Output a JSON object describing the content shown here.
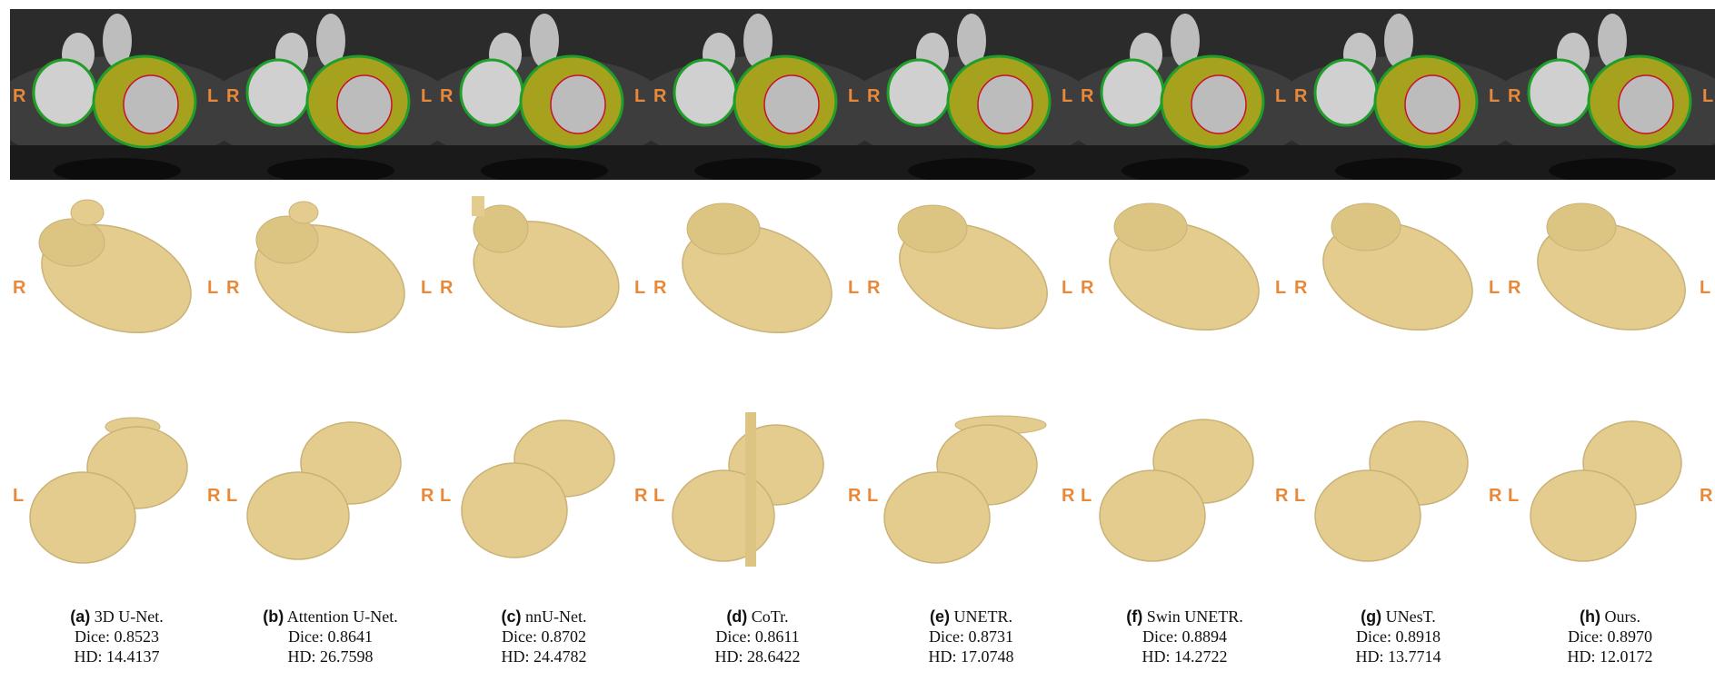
{
  "figure": {
    "row_labels": {
      "ct": {
        "left": "R",
        "right": "L"
      },
      "render_top": {
        "left": "R",
        "right": "L"
      },
      "render_bottom": {
        "left": "L",
        "right": "R"
      }
    },
    "colors": {
      "myocardium_overlay": "#a7a21e",
      "ground_truth_contour": "#1f9e2a",
      "error_contour": "#c8102e",
      "arrow": "#e01b1b",
      "mesh": "#e3cc8e",
      "orientation_label": "#e8893a"
    },
    "panels": [
      {
        "letter": "(a)",
        "name": "3D U-Net.",
        "dice": "Dice: 0.8523",
        "hd": "HD: 14.4137"
      },
      {
        "letter": "(b)",
        "name": "Attention U-Net.",
        "dice": "Dice: 0.8641",
        "hd": "HD: 26.7598"
      },
      {
        "letter": "(c)",
        "name": "nnU-Net.",
        "dice": "Dice: 0.8702",
        "hd": "HD: 24.4782"
      },
      {
        "letter": "(d)",
        "name": "CoTr.",
        "dice": "Dice: 0.8611",
        "hd": "HD: 28.6422"
      },
      {
        "letter": "(e)",
        "name": "UNETR.",
        "dice": "Dice: 0.8731",
        "hd": "HD: 17.0748"
      },
      {
        "letter": "(f)",
        "name": "Swin UNETR.",
        "dice": "Dice: 0.8894",
        "hd": "HD: 14.2722"
      },
      {
        "letter": "(g)",
        "name": "UNesT.",
        "dice": "Dice: 0.8918",
        "hd": "HD: 13.7714"
      },
      {
        "letter": "(h)",
        "name": "Ours.",
        "dice": "Dice: 0.8970",
        "hd": "HD: 12.0172"
      }
    ]
  }
}
